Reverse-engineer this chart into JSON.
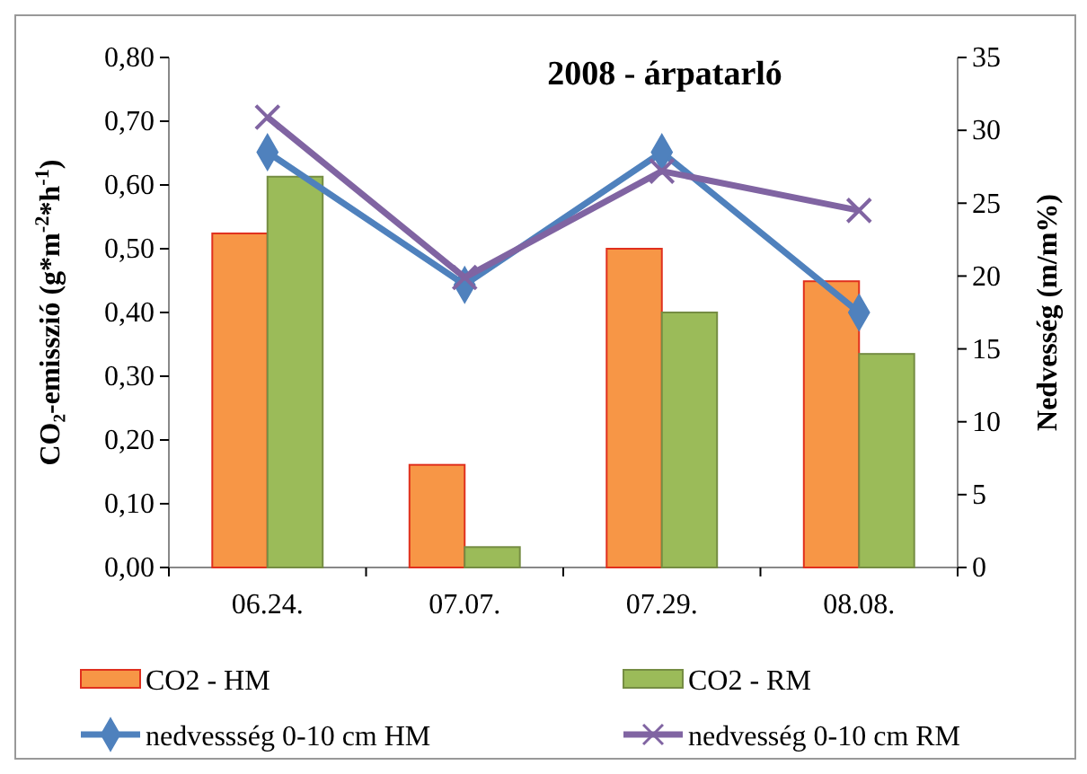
{
  "chart_data": {
    "type": "bar",
    "title": "2008 - árpatarló",
    "ylabel": "CO₂-emisszió (g*m$^{-2}$*h$^{-1}$)",
    "y2label": "Nedvesség (m/m%)",
    "categories": [
      "06.24.",
      "07.07.",
      "07.29.",
      "08.08."
    ],
    "series": [
      {
        "name": "CO2 - HM",
        "color": "#f79646",
        "values": [
          0.524,
          0.161,
          0.5,
          0.449
        ]
      },
      {
        "name": "CO2 - RM",
        "color": "#9bbb59",
        "values": [
          0.613,
          0.032,
          0.4,
          0.335
        ]
      },
      {
        "name": "nedvessség 0-10 cm HM",
        "type": "line",
        "axis": "y2",
        "color": "#4f81bd",
        "marker": "diamond",
        "values": [
          28.5,
          19.4,
          28.5,
          17.5
        ]
      },
      {
        "name": "nedvesség 0-10 cm RM",
        "type": "line",
        "axis": "y2",
        "color": "#8064a2",
        "marker": "cross",
        "values": [
          30.9,
          19.9,
          27.2,
          24.5
        ]
      }
    ],
    "ylim": [
      0,
      0.8
    ],
    "yticks": [
      {
        "value": 0,
        "label": "0,00"
      },
      {
        "value": 0.1,
        "label": "0,10"
      },
      {
        "value": 0.2,
        "label": "0,20"
      },
      {
        "value": 0.3,
        "label": "0,30"
      },
      {
        "value": 0.4,
        "label": "0,40"
      },
      {
        "value": 0.5,
        "label": "0,50"
      },
      {
        "value": 0.6,
        "label": "0,60"
      },
      {
        "value": 0.7,
        "label": "0,70"
      },
      {
        "value": 0.8,
        "label": "0,80"
      }
    ],
    "y2lim": [
      0,
      35
    ],
    "y2ticks": [
      0,
      5,
      10,
      15,
      20,
      25,
      30,
      35
    ],
    "legend": "bottom",
    "grid": false
  }
}
